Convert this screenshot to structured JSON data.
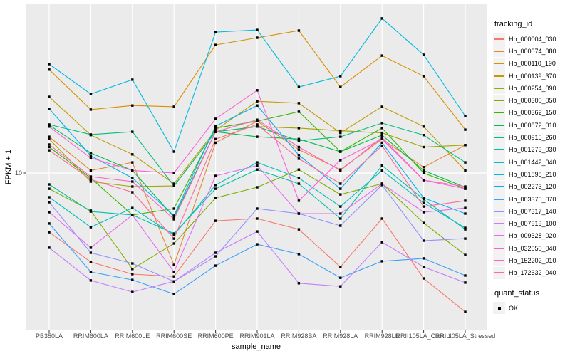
{
  "figure": {
    "background": "#FFFFFF",
    "panel_background": "#EBEBEB",
    "grid_color": "#FFFFFF",
    "axis_text_color": "#4D4D4D",
    "tick_mark_color": "#333333",
    "point_color": "#000000"
  },
  "chart_data": {
    "type": "line",
    "title": "",
    "xlabel": "sample_name",
    "ylabel": "FPKM + 1",
    "y_scale": "log10",
    "y_ticks": [
      10
    ],
    "y_tick_labels": [
      "10"
    ],
    "ylim": [
      1.65,
      67
    ],
    "grid": "major-white-on-gray",
    "legend_position": "right",
    "point_shape": "filled-square",
    "categories": [
      "PB350LA",
      "RRIM600LA",
      "RRIM600LE",
      "RRIM600SE",
      "RRIM600PE",
      "RRIM901LA",
      "RRIM928BA",
      "RRIM928LA",
      "RRIM928LE",
      "RRII105LA_Control",
      "RRII105LA_Stressed"
    ],
    "series": [
      {
        "name": "Hb_000004_030",
        "color": "#F8766D",
        "values": [
          5.05,
          3.58,
          3.11,
          3.03,
          5.76,
          5.91,
          5.22,
          3.38,
          5.91,
          2.96,
          2.01
        ]
      },
      {
        "name": "Hb_000074_080",
        "color": "#EA8331",
        "values": [
          15.2,
          10.3,
          11.3,
          3.46,
          14.2,
          18.2,
          13.1,
          10.4,
          14.8,
          10.7,
          13.8
        ]
      },
      {
        "name": "Hb_000110_190",
        "color": "#D89000",
        "values": [
          33.0,
          20.8,
          21.8,
          21.5,
          43.9,
          47.7,
          51.8,
          27.0,
          38.8,
          30.6,
          16.5
        ]
      },
      {
        "name": "Hb_000139_370",
        "color": "#C09B00",
        "values": [
          24.1,
          15.5,
          12.4,
          8.84,
          16.4,
          22.9,
          22.4,
          15.9,
          21.5,
          17.1,
          10.3
        ]
      },
      {
        "name": "Hb_000254_090",
        "color": "#A3A500",
        "values": [
          14.8,
          9.06,
          8.55,
          8.62,
          16.1,
          17.1,
          16.8,
          16.3,
          15.9,
          13.5,
          13.8
        ]
      },
      {
        "name": "Hb_000300_050",
        "color": "#7CAE00",
        "values": [
          8.34,
          6.47,
          3.3,
          4.43,
          7.5,
          8.48,
          10.4,
          7.81,
          8.84,
          5.62,
          3.88
        ]
      },
      {
        "name": "Hb_000362_150",
        "color": "#39B600",
        "values": [
          13.5,
          9.44,
          6.16,
          6.63,
          16.8,
          18.2,
          20.3,
          12.8,
          16.8,
          10.0,
          8.34
        ]
      },
      {
        "name": "Hb_000872_010",
        "color": "#00BB4E",
        "values": [
          17.4,
          12.6,
          10.3,
          6.01,
          16.1,
          15.2,
          14.8,
          12.8,
          15.5,
          10.3,
          8.48
        ]
      },
      {
        "name": "Hb_000915_260",
        "color": "#00BF7D",
        "values": [
          17.5,
          15.6,
          16.1,
          8.62,
          16.1,
          17.1,
          14.5,
          15.2,
          17.8,
          15.5,
          11.3
        ]
      },
      {
        "name": "Hb_001279_030",
        "color": "#00C1A7",
        "values": [
          8.77,
          6.41,
          6.16,
          4.97,
          8.34,
          10.4,
          8.84,
          5.91,
          10.9,
          7.38,
          5.22
        ]
      },
      {
        "name": "Hb_001442_040",
        "color": "#00BFC4",
        "values": [
          7.56,
          5.35,
          6.68,
          4.89,
          8.7,
          11.3,
          9.44,
          6.79,
          10.3,
          7.08,
          5.31
        ]
      },
      {
        "name": "Hb_001898_210",
        "color": "#00BADE",
        "values": [
          35.2,
          24.9,
          29.4,
          12.8,
          50.9,
          52.2,
          27.0,
          30.6,
          59.6,
          39.2,
          19.3
        ]
      },
      {
        "name": "Hb_002273_120",
        "color": "#00B0F6",
        "values": [
          21.0,
          12.2,
          9.44,
          6.11,
          17.2,
          21.8,
          12.3,
          8.34,
          14.2,
          7.5,
          6.26
        ]
      },
      {
        "name": "Hb_003375_070",
        "color": "#35A2FF",
        "values": [
          5.58,
          3.19,
          2.91,
          2.47,
          3.43,
          4.39,
          3.92,
          2.98,
          3.61,
          3.73,
          3.06
        ]
      },
      {
        "name": "Hb_007317_140",
        "color": "#9590FF",
        "values": [
          7.14,
          3.98,
          3.52,
          2.86,
          3.82,
          6.63,
          6.26,
          5.44,
          8.7,
          4.58,
          4.69
        ]
      },
      {
        "name": "Hb_007919_100",
        "color": "#C77CFF",
        "values": [
          4.22,
          2.89,
          2.53,
          2.86,
          3.98,
          5.09,
          2.8,
          2.7,
          4.5,
          3.38,
          2.82
        ]
      },
      {
        "name": "Hb_009328_020",
        "color": "#E76BF3",
        "values": [
          6.36,
          4.22,
          6.16,
          3.19,
          9.68,
          10.9,
          6.26,
          6.26,
          8.84,
          6.36,
          6.68
        ]
      },
      {
        "name": "Hb_032050_040",
        "color": "#FA62DB",
        "values": [
          17.1,
          11.9,
          10.3,
          10.0,
          18.7,
          26.0,
          7.26,
          11.6,
          14.8,
          9.21,
          8.34
        ]
      },
      {
        "name": "Hb_152202_010",
        "color": "#FF61C3",
        "values": [
          13.9,
          9.6,
          9.06,
          5.86,
          16.1,
          18.5,
          13.5,
          10.3,
          15.1,
          9.21,
          8.55
        ]
      },
      {
        "name": "Hb_172632_040",
        "color": "#FF6A98",
        "values": [
          13.0,
          9.29,
          8.01,
          4.69,
          14.8,
          17.5,
          11.8,
          8.84,
          13.7,
          6.79,
          7.26
        ]
      }
    ],
    "legend": {
      "color_title": "tracking_id",
      "shape_title": "quant_status",
      "shape_items": [
        {
          "label": "OK",
          "shape": "black-square"
        }
      ]
    }
  }
}
